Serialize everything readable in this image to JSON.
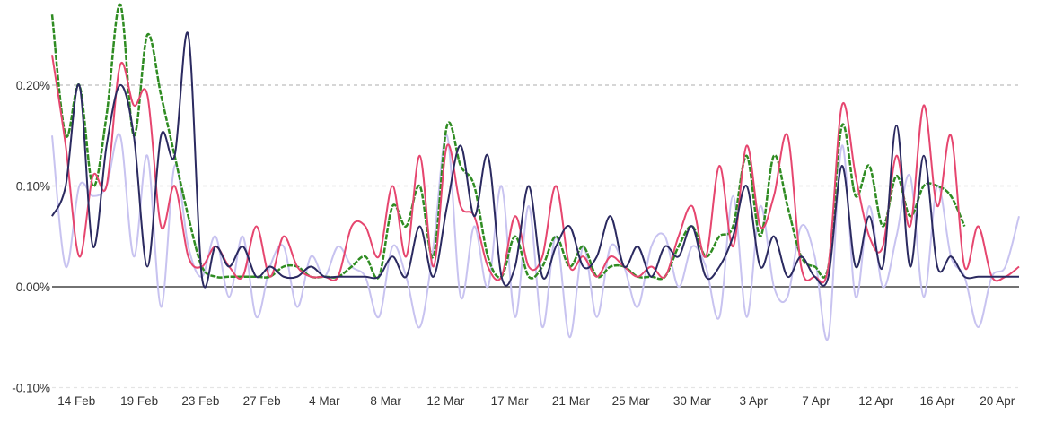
{
  "chart_data": {
    "type": "line",
    "title": "",
    "xlabel": "",
    "ylabel": "",
    "ylim": [
      -0.1,
      0.285
    ],
    "y_unit": "%",
    "yticks": [
      {
        "value": 0.2,
        "label": "0.20%"
      },
      {
        "value": 0.1,
        "label": "0.10%"
      },
      {
        "value": 0.0,
        "label": "0.00%"
      },
      {
        "value": -0.1,
        "label": "-0.10%"
      }
    ],
    "x_count": 72,
    "xticks": [
      {
        "index": 1.8,
        "label": "14 Feb"
      },
      {
        "index": 6.4,
        "label": "19 Feb"
      },
      {
        "index": 10.9,
        "label": "23 Feb"
      },
      {
        "index": 15.4,
        "label": "27 Feb"
      },
      {
        "index": 20.0,
        "label": "4 Mar"
      },
      {
        "index": 24.5,
        "label": "8 Mar"
      },
      {
        "index": 28.9,
        "label": "12 Mar"
      },
      {
        "index": 33.6,
        "label": "17 Mar"
      },
      {
        "index": 38.1,
        "label": "21 Mar"
      },
      {
        "index": 42.5,
        "label": "25 Mar"
      },
      {
        "index": 47.0,
        "label": "30 Mar"
      },
      {
        "index": 51.5,
        "label": "3 Apr"
      },
      {
        "index": 56.1,
        "label": "7 Apr"
      },
      {
        "index": 60.5,
        "label": "12 Apr"
      },
      {
        "index": 65.0,
        "label": "16 Apr"
      },
      {
        "index": 69.4,
        "label": "20 Apr"
      }
    ],
    "grid": true,
    "legend": "none",
    "series": [
      {
        "name": "lavender",
        "color": "#c8c3f0",
        "width": 2,
        "dashed": false,
        "values": [
          0.15,
          0.02,
          0.1,
          0.09,
          0.1,
          0.15,
          0.03,
          0.13,
          -0.02,
          0.12,
          0.04,
          0.01,
          0.05,
          -0.01,
          0.05,
          -0.03,
          0.02,
          0.04,
          -0.02,
          0.03,
          0.01,
          0.04,
          0.02,
          0.01,
          -0.03,
          0.04,
          0.01,
          -0.04,
          0.04,
          0.15,
          -0.01,
          0.06,
          0.0,
          0.1,
          -0.03,
          0.08,
          -0.04,
          0.05,
          -0.05,
          0.04,
          -0.03,
          0.04,
          0.02,
          -0.02,
          0.04,
          0.05,
          0.0,
          0.04,
          0.02,
          -0.03,
          0.09,
          -0.03,
          0.08,
          0.0,
          -0.01,
          0.06,
          0.03,
          -0.05,
          0.14,
          -0.01,
          0.08,
          0.0,
          0.05,
          0.11,
          -0.01,
          0.1,
          0.03,
          0.01,
          -0.04,
          0.01,
          0.02,
          0.07
        ]
      },
      {
        "name": "green",
        "color": "#2f8c22",
        "width": 2.5,
        "dashed": true,
        "values": [
          0.27,
          0.15,
          0.2,
          0.1,
          0.17,
          0.28,
          0.15,
          0.25,
          0.19,
          0.13,
          0.07,
          0.02,
          0.01,
          0.01,
          0.01,
          0.01,
          0.01,
          0.02,
          0.02,
          0.01,
          0.01,
          0.01,
          0.02,
          0.03,
          0.01,
          0.08,
          0.06,
          0.1,
          0.03,
          0.16,
          0.12,
          0.1,
          0.03,
          0.01,
          0.05,
          0.01,
          0.02,
          0.05,
          0.02,
          0.04,
          0.01,
          0.02,
          0.02,
          0.01,
          0.01,
          0.01,
          0.04,
          0.06,
          0.03,
          0.05,
          0.06,
          0.13,
          0.05,
          0.13,
          0.08,
          0.03,
          0.02,
          0.02,
          0.16,
          0.09,
          0.12,
          0.06,
          0.11,
          0.07,
          0.1,
          0.1,
          0.09,
          0.06,
          null,
          null,
          null,
          null
        ]
      },
      {
        "name": "pink",
        "color": "#e6466f",
        "width": 2,
        "dashed": false,
        "values": [
          0.23,
          0.14,
          0.03,
          0.11,
          0.1,
          0.22,
          0.18,
          0.19,
          0.06,
          0.1,
          0.03,
          0.02,
          0.04,
          0.02,
          0.01,
          0.06,
          0.01,
          0.05,
          0.02,
          0.01,
          0.01,
          0.01,
          0.06,
          0.06,
          0.03,
          0.1,
          0.03,
          0.13,
          0.02,
          0.14,
          0.08,
          0.07,
          0.02,
          0.01,
          0.07,
          0.02,
          0.03,
          0.1,
          0.02,
          0.03,
          0.01,
          0.03,
          0.02,
          0.01,
          0.02,
          0.01,
          0.05,
          0.08,
          0.03,
          0.12,
          0.04,
          0.14,
          0.06,
          0.09,
          0.15,
          0.02,
          0.01,
          0.02,
          0.18,
          0.11,
          0.05,
          0.04,
          0.13,
          0.06,
          0.18,
          0.08,
          0.15,
          0.02,
          0.06,
          0.01,
          0.01,
          0.02
        ]
      },
      {
        "name": "navy",
        "color": "#2b2a60",
        "width": 2,
        "dashed": false,
        "values": [
          0.07,
          0.1,
          0.2,
          0.04,
          0.14,
          0.2,
          0.15,
          0.02,
          0.15,
          0.13,
          0.25,
          0.01,
          0.04,
          0.02,
          0.04,
          0.01,
          0.02,
          0.01,
          0.01,
          0.02,
          0.01,
          0.01,
          0.01,
          0.01,
          0.01,
          0.03,
          0.01,
          0.06,
          0.01,
          0.08,
          0.14,
          0.07,
          0.13,
          0.01,
          0.02,
          0.1,
          0.01,
          0.04,
          0.06,
          0.02,
          0.03,
          0.07,
          0.02,
          0.04,
          0.01,
          0.04,
          0.03,
          0.06,
          0.01,
          0.02,
          0.05,
          0.1,
          0.02,
          0.05,
          0.01,
          0.03,
          0.01,
          0.01,
          0.12,
          0.02,
          0.07,
          0.02,
          0.16,
          0.02,
          0.13,
          0.02,
          0.03,
          0.01,
          0.01,
          0.01,
          0.01,
          0.01
        ]
      }
    ]
  }
}
